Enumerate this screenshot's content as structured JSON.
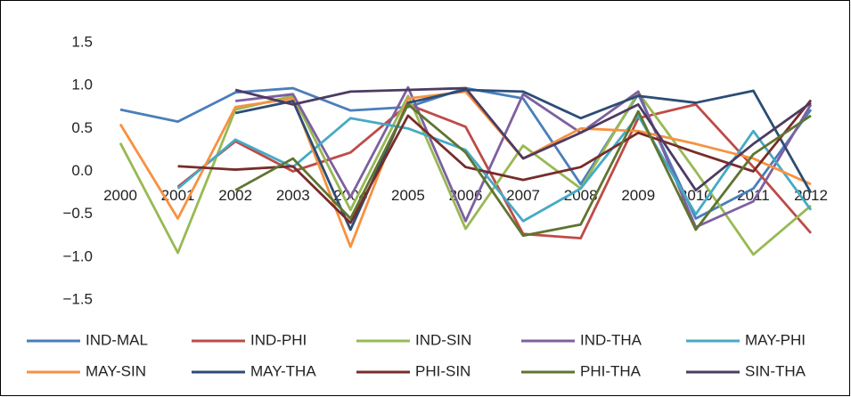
{
  "chart_data": {
    "type": "line",
    "categories": [
      "2000",
      "2001",
      "2002",
      "2003",
      "2004",
      "2005",
      "2006",
      "2007",
      "2008",
      "2009",
      "2010",
      "2011",
      "2012"
    ],
    "ylim": [
      -1.5,
      1.5
    ],
    "yticks": [
      1.5,
      {
        "value": 1.0,
        "label": "1.0"
      },
      0.5,
      {
        "value": 0.0,
        "label": "0.0"
      },
      {
        "value": -0.5,
        "label": "−0.5"
      },
      {
        "value": -1.0,
        "label": "−1.0"
      },
      {
        "value": -1.5,
        "label": "−1.5"
      }
    ],
    "grid": false,
    "legend": "bottom",
    "series": [
      {
        "name": "IND-MAL",
        "color": "#4a7ebb",
        "values": [
          0.72,
          0.58,
          0.92,
          0.97,
          0.71,
          0.75,
          0.97,
          0.85,
          -0.15,
          0.9,
          -0.55,
          -0.2,
          0.72
        ]
      },
      {
        "name": "IND-PHI",
        "color": "#be4b48",
        "values": [
          null,
          -0.18,
          0.35,
          0.0,
          0.22,
          0.78,
          0.52,
          -0.73,
          -0.78,
          0.62,
          0.78,
          0.05,
          -0.72
        ]
      },
      {
        "name": "IND-SIN",
        "color": "#98b954",
        "values": [
          0.33,
          -0.95,
          0.72,
          0.88,
          -0.45,
          0.88,
          -0.67,
          0.3,
          -0.2,
          0.92,
          0.0,
          -0.97,
          -0.4
        ]
      },
      {
        "name": "IND-THA",
        "color": "#7d60a0",
        "values": [
          null,
          null,
          0.82,
          0.9,
          -0.3,
          0.98,
          -0.58,
          0.9,
          0.45,
          0.93,
          -0.65,
          -0.35,
          0.78
        ]
      },
      {
        "name": "MAY-PHI",
        "color": "#46aac5",
        "values": [
          null,
          -0.2,
          0.37,
          0.05,
          0.62,
          0.5,
          0.25,
          -0.58,
          -0.2,
          0.65,
          -0.5,
          0.47,
          -0.45
        ]
      },
      {
        "name": "MAY-SIN",
        "color": "#f69240",
        "values": [
          0.55,
          -0.55,
          0.75,
          0.85,
          -0.88,
          0.85,
          0.93,
          0.15,
          0.5,
          0.47,
          0.32,
          0.15,
          -0.15
        ]
      },
      {
        "name": "MAY-THA",
        "color": "#2c4d75",
        "values": [
          null,
          null,
          0.68,
          0.82,
          -0.68,
          0.8,
          0.95,
          0.93,
          0.62,
          0.88,
          0.8,
          0.94,
          -0.25
        ]
      },
      {
        "name": "PHI-SIN",
        "color": "#772c2a",
        "values": [
          null,
          0.06,
          0.02,
          0.06,
          -0.6,
          0.65,
          0.05,
          -0.1,
          0.05,
          0.45,
          0.22,
          0.0,
          0.83
        ]
      },
      {
        "name": "PHI-THA",
        "color": "#5f7530",
        "values": [
          null,
          null,
          -0.22,
          0.15,
          -0.55,
          0.78,
          0.22,
          -0.75,
          -0.62,
          0.7,
          -0.68,
          0.2,
          0.65
        ]
      },
      {
        "name": "SIN-THA",
        "color": "#4d3b62",
        "values": [
          null,
          null,
          0.95,
          0.78,
          0.93,
          0.95,
          0.97,
          0.15,
          0.45,
          0.78,
          -0.22,
          0.32,
          0.8
        ]
      }
    ]
  }
}
